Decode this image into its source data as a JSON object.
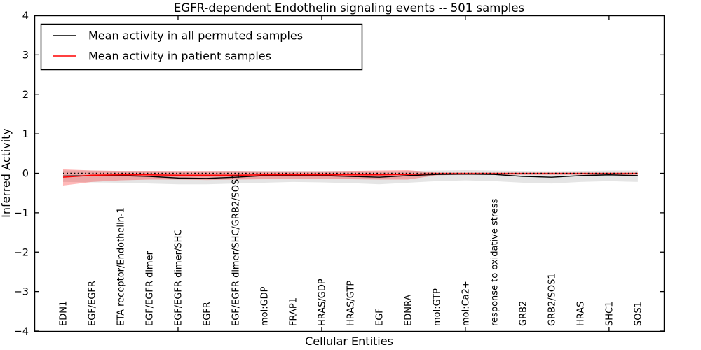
{
  "title": "EGFR-dependent Endothelin signaling events -- 501 samples",
  "axes": {
    "xlabel": "Cellular Entities",
    "ylabel": "Inferred Activity"
  },
  "legend": {
    "position": "upper left",
    "items": [
      {
        "label": "Mean activity in all permuted samples",
        "color": "#000000"
      },
      {
        "label": "Mean activity in patient samples",
        "color": "#ff0000"
      }
    ]
  },
  "chart_data": {
    "type": "line",
    "title": "EGFR-dependent Endothelin signaling events -- 501 samples",
    "xlabel": "Cellular Entities",
    "ylabel": "Inferred Activity",
    "grid": false,
    "legend_position": "upper left",
    "ylim": [
      -4,
      4
    ],
    "yticks": [
      -4,
      -3,
      -2,
      -1,
      0,
      1,
      2,
      3,
      4
    ],
    "ytick_labels": [
      "−4",
      "−3",
      "−2",
      "−1",
      "0",
      "1",
      "2",
      "3",
      "4"
    ],
    "xlim": [
      0,
      21.93
    ],
    "xticks": [
      0,
      5,
      10,
      15,
      20
    ],
    "categories": [
      "EDN1",
      "EGF/EGFR",
      "ETA receptor/Endothelin-1",
      "EGF/EGFR dimer",
      "EGF/EGFR dimer/SHC",
      "EGFR",
      "EGF/EGFR dimer/SHC/GRB2/SOS1",
      "mol:GDP",
      "FRAP1",
      "HRAS/GDP",
      "HRAS/GTP",
      "EGF",
      "EDNRA",
      "mol:GTP",
      "mol:Ca2+",
      "response to oxidative stress",
      "GRB2",
      "GRB2/SOS1",
      "HRAS",
      "SHC1",
      "SOS1"
    ],
    "x": [
      1,
      2,
      3,
      4,
      5,
      6,
      7,
      8,
      9,
      10,
      11,
      12,
      13,
      14,
      15,
      16,
      17,
      18,
      19,
      20,
      21
    ],
    "series": [
      {
        "name": "permuted-std-band",
        "type": "band",
        "color": "rgba(0,0,0,0.10)",
        "upper": [
          0.07,
          0.07,
          0.06,
          0.06,
          0.05,
          0.05,
          0.06,
          0.06,
          0.06,
          0.06,
          0.06,
          0.05,
          0.06,
          0.07,
          0.08,
          0.07,
          0.06,
          0.05,
          0.06,
          0.07,
          0.07
        ],
        "lower": [
          -0.22,
          -0.23,
          -0.24,
          -0.26,
          -0.28,
          -0.28,
          -0.26,
          -0.24,
          -0.22,
          -0.23,
          -0.25,
          -0.28,
          -0.24,
          -0.2,
          -0.18,
          -0.2,
          -0.24,
          -0.26,
          -0.22,
          -0.2,
          -0.22
        ]
      },
      {
        "name": "patient-std-band",
        "type": "band",
        "color": "rgba(255,0,0,0.28)",
        "upper": [
          0.1,
          0.07,
          0.06,
          0.06,
          0.06,
          0.06,
          0.06,
          0.05,
          0.05,
          0.05,
          0.06,
          0.07,
          0.08,
          0.02,
          0.02,
          0.02,
          0.02,
          0.02,
          0.02,
          0.02,
          0.02
        ],
        "lower": [
          -0.31,
          -0.22,
          -0.18,
          -0.16,
          -0.16,
          -0.17,
          -0.16,
          -0.15,
          -0.15,
          -0.15,
          -0.15,
          -0.16,
          -0.16,
          -0.05,
          -0.04,
          -0.04,
          -0.04,
          -0.04,
          -0.04,
          -0.04,
          -0.04
        ]
      },
      {
        "name": "Mean activity in all permuted samples",
        "type": "line",
        "style": "solid",
        "color": "#000000",
        "width": 1.4,
        "values": [
          -0.07,
          -0.06,
          -0.06,
          -0.08,
          -0.12,
          -0.13,
          -0.1,
          -0.06,
          -0.05,
          -0.06,
          -0.08,
          -0.1,
          -0.06,
          -0.03,
          -0.02,
          -0.03,
          -0.08,
          -0.1,
          -0.06,
          -0.04,
          -0.06
        ]
      },
      {
        "name": "Mean activity in patient samples",
        "type": "line",
        "style": "solid",
        "color": "#ff0000",
        "width": 1.6,
        "values": [
          -0.1,
          -0.05,
          -0.04,
          -0.04,
          -0.05,
          -0.05,
          -0.05,
          -0.04,
          -0.04,
          -0.04,
          -0.04,
          -0.04,
          -0.03,
          -0.01,
          -0.01,
          -0.01,
          -0.01,
          -0.01,
          -0.01,
          -0.01,
          -0.01
        ]
      },
      {
        "name": "zero-reference-line",
        "type": "line",
        "style": "dotted",
        "color": "#000000",
        "width": 1.5,
        "values": [
          0,
          0,
          0,
          0,
          0,
          0,
          0,
          0,
          0,
          0,
          0,
          0,
          0,
          0,
          0,
          0,
          0,
          0,
          0,
          0,
          0
        ]
      }
    ]
  }
}
